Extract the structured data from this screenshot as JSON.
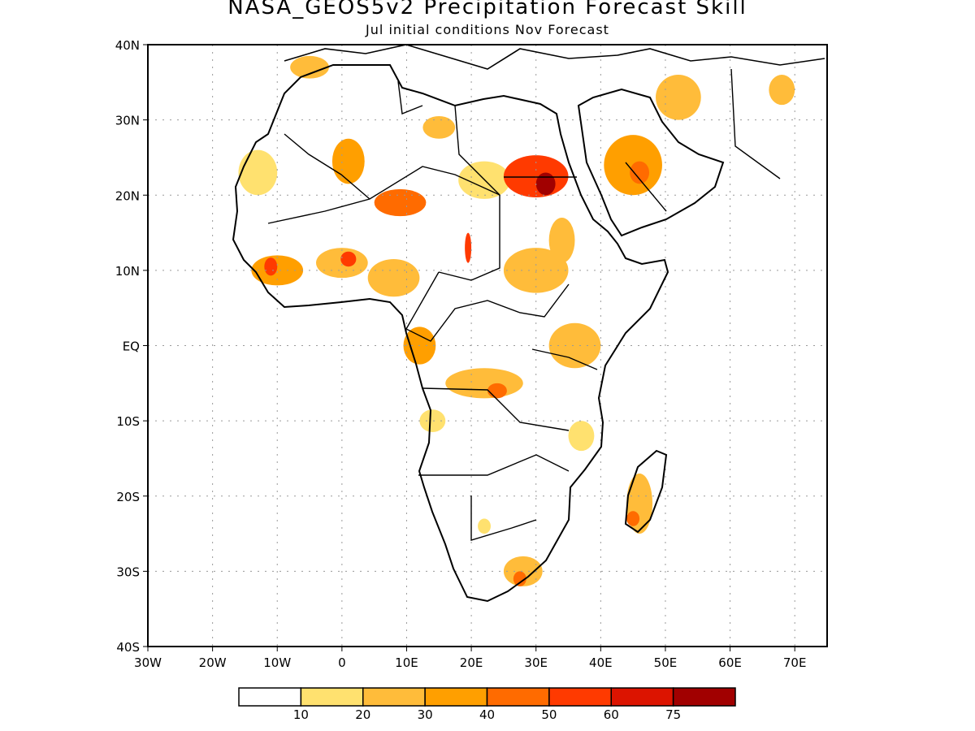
{
  "title": "NASA_GEOS5v2 Precipitation Forecast Skill",
  "subtitle": "Jul initial conditions   Nov Forecast",
  "lon_ticks": [
    "30W",
    "20W",
    "10W",
    "0",
    "10E",
    "20E",
    "30E",
    "40E",
    "50E",
    "60E",
    "70E"
  ],
  "lat_ticks": [
    "40N",
    "30N",
    "20N",
    "10N",
    "EQ",
    "10S",
    "20S",
    "30S",
    "40S"
  ],
  "colorbar": {
    "colors": [
      "#ffffff",
      "#ffe16f",
      "#ffbc3a",
      "#ff9f00",
      "#ff6b00",
      "#ff3a00",
      "#dc1400",
      "#a10000"
    ],
    "labels": [
      "10",
      "20",
      "30",
      "40",
      "50",
      "60",
      "75"
    ]
  },
  "skill_regions": [
    {
      "name": "morocco-n",
      "lon": -5,
      "lat": 37,
      "rx": 3,
      "ry": 1.5,
      "level": 3
    },
    {
      "name": "west-sahara-coast",
      "lon": -13,
      "lat": 23,
      "rx": 3,
      "ry": 3,
      "level": 2
    },
    {
      "name": "algeria-s",
      "lon": 1,
      "lat": 24.5,
      "rx": 2.5,
      "ry": 3,
      "level": 4
    },
    {
      "name": "niger-n",
      "lon": 9,
      "lat": 19,
      "rx": 4,
      "ry": 1.8,
      "level": 5
    },
    {
      "name": "libya-ne",
      "lon": 15,
      "lat": 29,
      "rx": 2.5,
      "ry": 1.5,
      "level": 3
    },
    {
      "name": "chad-ne",
      "lon": 22,
      "lat": 22,
      "rx": 4,
      "ry": 2.5,
      "level": 2
    },
    {
      "name": "egypt-sudan-border",
      "lon": 30,
      "lat": 22.5,
      "rx": 5,
      "ry": 2.8,
      "level": 6
    },
    {
      "name": "egypt-core",
      "lon": 31.5,
      "lat": 21.5,
      "rx": 1.5,
      "ry": 1.5,
      "level": 8
    },
    {
      "name": "arabia-central",
      "lon": 45,
      "lat": 24,
      "rx": 4.5,
      "ry": 4,
      "level": 4
    },
    {
      "name": "arabia-core",
      "lon": 46,
      "lat": 23,
      "rx": 1.5,
      "ry": 1.5,
      "level": 5
    },
    {
      "name": "iran-s",
      "lon": 52,
      "lat": 33,
      "rx": 3.5,
      "ry": 3,
      "level": 3
    },
    {
      "name": "pakistan-w",
      "lon": 68,
      "lat": 34,
      "rx": 2,
      "ry": 2,
      "level": 3
    },
    {
      "name": "guinea",
      "lon": -10,
      "lat": 10,
      "rx": 4,
      "ry": 2,
      "level": 4
    },
    {
      "name": "guinea-core",
      "lon": -11,
      "lat": 10.5,
      "rx": 1,
      "ry": 1.2,
      "level": 6
    },
    {
      "name": "nigeria-n",
      "lon": 0,
      "lat": 11,
      "rx": 4,
      "ry": 2,
      "level": 3
    },
    {
      "name": "nigeria-core",
      "lon": 1,
      "lat": 11.5,
      "rx": 1.2,
      "ry": 1,
      "level": 6
    },
    {
      "name": "nigeria-e",
      "lon": 8,
      "lat": 9,
      "rx": 4,
      "ry": 2.5,
      "level": 3
    },
    {
      "name": "sudan-s",
      "lon": 30,
      "lat": 10,
      "rx": 5,
      "ry": 3,
      "level": 3
    },
    {
      "name": "chad-strip",
      "lon": 19.5,
      "lat": 13,
      "rx": 0.5,
      "ry": 2,
      "level": 6
    },
    {
      "name": "ethiopia-w",
      "lon": 34,
      "lat": 14,
      "rx": 2,
      "ry": 3,
      "level": 3
    },
    {
      "name": "gabon",
      "lon": 12,
      "lat": 0,
      "rx": 2.5,
      "ry": 2.5,
      "level": 4
    },
    {
      "name": "uganda-kenya",
      "lon": 36,
      "lat": 0,
      "rx": 4,
      "ry": 3,
      "level": 3
    },
    {
      "name": "drc-south",
      "lon": 22,
      "lat": -5,
      "rx": 6,
      "ry": 2,
      "level": 3
    },
    {
      "name": "drc-core",
      "lon": 24,
      "lat": -6,
      "rx": 1.5,
      "ry": 1,
      "level": 5
    },
    {
      "name": "angola",
      "lon": 14,
      "lat": -10,
      "rx": 2,
      "ry": 1.5,
      "level": 2
    },
    {
      "name": "tanzania-s",
      "lon": 37,
      "lat": -12,
      "rx": 2,
      "ry": 2,
      "level": 2
    },
    {
      "name": "madagascar",
      "lon": 46,
      "lat": -21,
      "rx": 2,
      "ry": 4,
      "level": 3
    },
    {
      "name": "madagascar-core",
      "lon": 45,
      "lat": -23,
      "rx": 1,
      "ry": 1,
      "level": 5
    },
    {
      "name": "botswana-s",
      "lon": 22,
      "lat": -24,
      "rx": 1,
      "ry": 1,
      "level": 2
    },
    {
      "name": "south-africa-e",
      "lon": 28,
      "lat": -30,
      "rx": 3,
      "ry": 2,
      "level": 3
    },
    {
      "name": "south-africa-core",
      "lon": 27.5,
      "lat": -31,
      "rx": 1,
      "ry": 1,
      "level": 5
    }
  ]
}
